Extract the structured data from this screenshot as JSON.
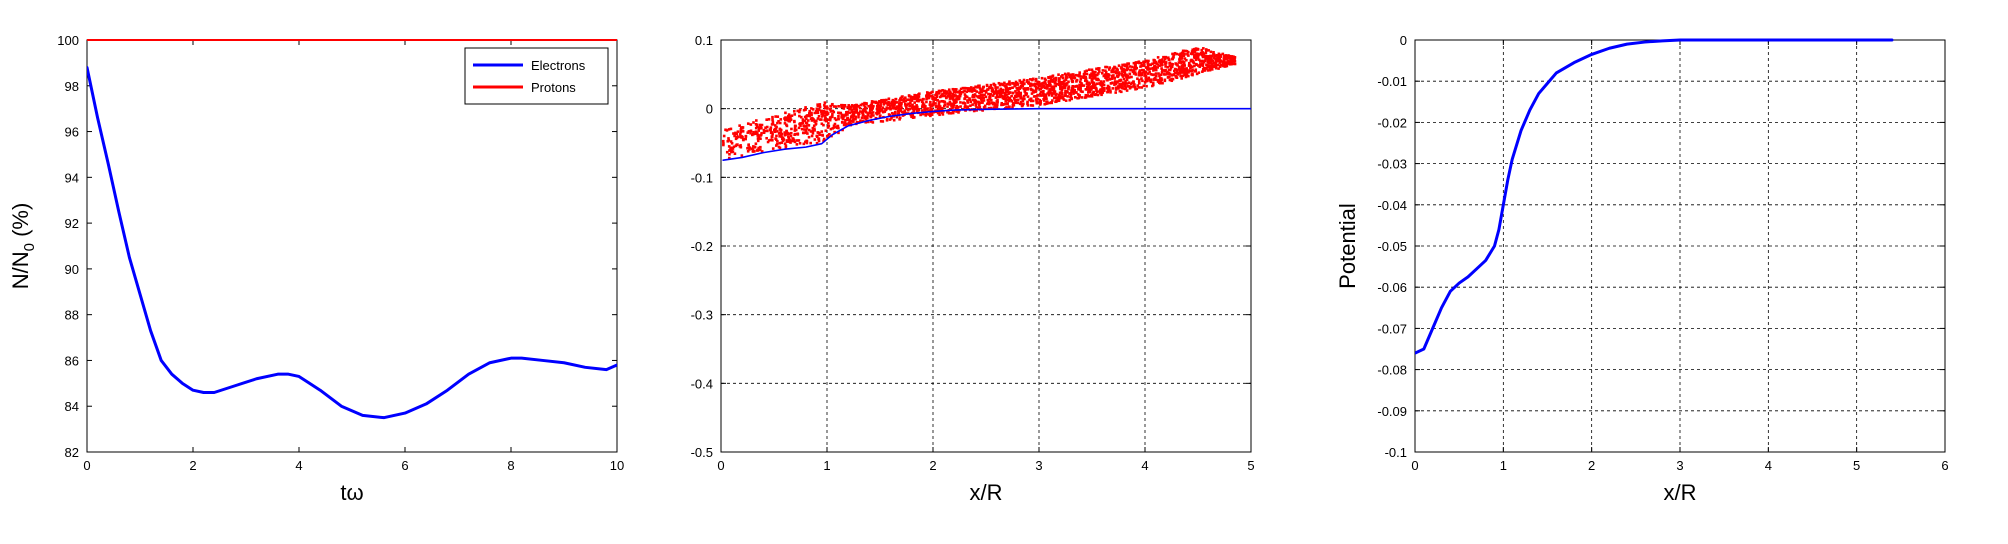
{
  "chart_data": [
    {
      "type": "line",
      "xlabel": "tω",
      "ylabel": "N/N0 (%)",
      "ylabel_main": "N/N",
      "ylabel_sub": "0",
      "ylabel_tail": " (%)",
      "xlim": [
        0,
        10
      ],
      "ylim": [
        82,
        100
      ],
      "xticks": [
        0,
        2,
        4,
        6,
        8,
        10
      ],
      "yticks": [
        82,
        84,
        86,
        88,
        90,
        92,
        94,
        96,
        98,
        100
      ],
      "grid": false,
      "legend_position": "top-right",
      "series": [
        {
          "name": "Electrons",
          "color": "#0000ff",
          "x": [
            0,
            0.2,
            0.4,
            0.6,
            0.8,
            1.0,
            1.2,
            1.4,
            1.6,
            1.8,
            2.0,
            2.2,
            2.4,
            2.8,
            3.2,
            3.6,
            3.8,
            4.0,
            4.4,
            4.8,
            5.2,
            5.6,
            6.0,
            6.4,
            6.8,
            7.2,
            7.6,
            8.0,
            8.2,
            8.6,
            9.0,
            9.4,
            9.8,
            10.0
          ],
          "y": [
            98.8,
            96.6,
            94.6,
            92.5,
            90.5,
            88.9,
            87.3,
            86.0,
            85.4,
            85.0,
            84.7,
            84.6,
            84.6,
            84.9,
            85.2,
            85.4,
            85.4,
            85.3,
            84.7,
            84.0,
            83.6,
            83.5,
            83.7,
            84.1,
            84.7,
            85.4,
            85.9,
            86.1,
            86.1,
            86.0,
            85.9,
            85.7,
            85.6,
            85.8
          ]
        },
        {
          "name": "Protons",
          "color": "#ff0000",
          "x": [
            0,
            10
          ],
          "y": [
            100,
            100
          ]
        }
      ]
    },
    {
      "type": "scatter",
      "xlabel": "x/R",
      "ylabel": "",
      "xlim": [
        0,
        5
      ],
      "ylim": [
        -0.5,
        0.1
      ],
      "xticks": [
        0,
        1,
        2,
        3,
        4,
        5
      ],
      "yticks": [
        -0.5,
        -0.4,
        -0.3,
        -0.2,
        -0.1,
        0,
        0.1
      ],
      "grid": true,
      "series": [
        {
          "type": "scatter",
          "color": "#ff0000",
          "x_range": [
            0.02,
            4.85
          ],
          "upper_edge": {
            "x": [
              0.02,
              0.5,
              1.0,
              1.2,
              2.0,
              3.0,
              4.0,
              4.5,
              4.85
            ],
            "y": [
              -0.03,
              -0.01,
              0.01,
              0.005,
              0.025,
              0.045,
              0.07,
              0.09,
              0.075
            ]
          },
          "lower_edge": {
            "x": [
              0.02,
              0.5,
              1.0,
              1.2,
              2.0,
              3.0,
              4.0,
              4.5,
              4.85
            ],
            "y": [
              -0.075,
              -0.06,
              -0.05,
              -0.025,
              -0.01,
              0.005,
              0.03,
              0.05,
              0.065
            ]
          }
        },
        {
          "type": "line",
          "color": "#0000ff",
          "x": [
            0.02,
            0.2,
            0.4,
            0.6,
            0.8,
            0.95,
            1.05,
            1.2,
            1.4,
            1.6,
            1.8,
            2.0,
            2.2,
            2.5,
            3.0,
            3.5,
            4.0,
            5.0
          ],
          "y": [
            -0.075,
            -0.071,
            -0.064,
            -0.059,
            -0.056,
            -0.051,
            -0.038,
            -0.025,
            -0.017,
            -0.011,
            -0.007,
            -0.004,
            -0.002,
            -0.001,
            0.0,
            0.0,
            0.0,
            0.0
          ]
        }
      ]
    },
    {
      "type": "line",
      "xlabel": "x/R",
      "ylabel": "Potential",
      "xlim": [
        0,
        6
      ],
      "ylim": [
        -0.1,
        0
      ],
      "xticks": [
        0,
        1,
        2,
        3,
        4,
        5,
        6
      ],
      "yticks": [
        -0.1,
        -0.09,
        -0.08,
        -0.07,
        -0.06,
        -0.05,
        -0.04,
        -0.03,
        -0.02,
        -0.01,
        0
      ],
      "grid": true,
      "series": [
        {
          "color": "#0000ff",
          "x": [
            0,
            0.1,
            0.2,
            0.3,
            0.4,
            0.5,
            0.6,
            0.7,
            0.8,
            0.9,
            0.95,
            1.0,
            1.05,
            1.1,
            1.2,
            1.3,
            1.4,
            1.5,
            1.6,
            1.8,
            2.0,
            2.2,
            2.4,
            2.6,
            2.8,
            3.0,
            3.5,
            4.0,
            5.4
          ],
          "y": [
            -0.076,
            -0.075,
            -0.07,
            -0.065,
            -0.061,
            -0.059,
            -0.0575,
            -0.0555,
            -0.0535,
            -0.05,
            -0.046,
            -0.04,
            -0.034,
            -0.029,
            -0.022,
            -0.017,
            -0.013,
            -0.0105,
            -0.008,
            -0.0055,
            -0.0035,
            -0.002,
            -0.001,
            -0.0005,
            -0.0002,
            0.0,
            0.0,
            0.0,
            0.0
          ]
        }
      ]
    }
  ]
}
